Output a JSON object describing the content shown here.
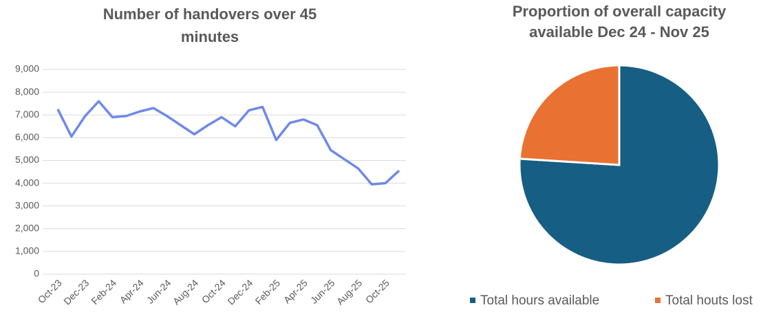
{
  "chart_data": [
    {
      "type": "line",
      "title": [
        "Number of handovers over 45",
        "minutes"
      ],
      "categories": [
        "Oct-23",
        null,
        "Dec-23",
        null,
        "Feb-24",
        null,
        "Apr-24",
        null,
        "Jun-24",
        null,
        "Aug-24",
        null,
        "Oct-24",
        null,
        "Dec-24",
        null,
        "Feb-25",
        null,
        "Apr-25",
        null,
        "Jun-25",
        null,
        "Aug-25",
        null,
        "Oct-25",
        null
      ],
      "series": [
        {
          "color": "#6f89e8",
          "values": [
            7250,
            6050,
            6950,
            7600,
            6900,
            6950,
            7150,
            7300,
            6950,
            6550,
            6150,
            6550,
            6900,
            6500,
            7200,
            7350,
            5900,
            6650,
            6800,
            6550,
            5450,
            5050,
            4650,
            3950,
            4000,
            4550
          ]
        }
      ],
      "ylim": [
        0,
        9000
      ],
      "yticks": [
        0,
        {
          "value": 1000,
          "label": "1,000"
        },
        {
          "value": 2000,
          "label": "2,000"
        },
        {
          "value": 3000,
          "label": "3,000"
        },
        {
          "value": 4000,
          "label": "4,000"
        },
        {
          "value": 5000,
          "label": "5,000"
        },
        {
          "value": 6000,
          "label": "6,000"
        },
        {
          "value": 7000,
          "label": "7,000"
        },
        {
          "value": 8000,
          "label": "8,000"
        },
        {
          "value": 9000,
          "label": "9,000"
        }
      ],
      "grid": true
    },
    {
      "type": "pie",
      "title": [
        "Proportion of overall capacity",
        "available  Dec 24 - Nov 25"
      ],
      "labels": [
        "Total hours available",
        "Total houts lost"
      ],
      "values": [
        76,
        24
      ],
      "colors": [
        "#165e83",
        "#e97132"
      ],
      "legend": "bottom"
    }
  ]
}
